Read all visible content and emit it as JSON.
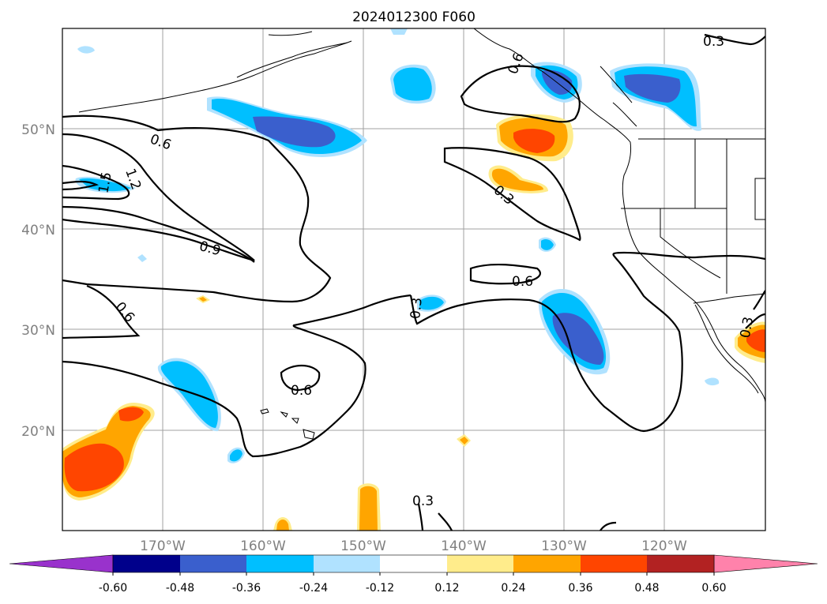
{
  "title": "2024012300 F060",
  "map": {
    "lon_range": [
      -180,
      -110
    ],
    "lat_range": [
      10,
      60
    ],
    "lat_labels": [
      "50°N",
      "40°N",
      "30°N",
      "20°N"
    ],
    "lon_labels": [
      "170°W",
      "160°W",
      "150°W",
      "140°W",
      "130°W",
      "120°W"
    ],
    "contour_labels": [
      "0.6",
      "0.3",
      "0.6",
      "1.2",
      "1.5",
      "0.9",
      "0.6",
      "0.3",
      "0.3",
      "0.6",
      "0.6",
      "0.3",
      "0.3"
    ],
    "land_color": "#ffffff",
    "ocean_color": "#ffffff"
  },
  "colorbar": {
    "extend": "both",
    "levels": [
      "-0.60",
      "-0.48",
      "-0.36",
      "-0.24",
      "-0.12",
      "0.12",
      "0.24",
      "0.36",
      "0.48",
      "0.60"
    ],
    "colors": [
      "#9932cc",
      "#00008b",
      "#3a5fcd",
      "#00bfff",
      "#b0e2ff",
      "#ffffff",
      "#ffec8b",
      "#ffa500",
      "#ff4500",
      "#b22222",
      "#ff82ab"
    ]
  }
}
